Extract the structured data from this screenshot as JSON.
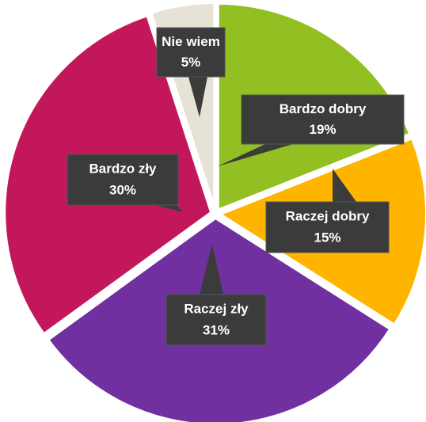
{
  "chart_data": {
    "type": "pie",
    "categories": [
      "Bardzo dobry",
      "Raczej dobry",
      "Raczej zły",
      "Bardzo zły",
      "Nie wiem"
    ],
    "values": [
      19,
      15,
      31,
      30,
      5
    ],
    "value_labels": [
      "19%",
      "15%",
      "31%",
      "30%",
      "5%"
    ],
    "colors": [
      "#92c023",
      "#ffb400",
      "#7030a0",
      "#c2185b",
      "#e6e2d6"
    ]
  }
}
